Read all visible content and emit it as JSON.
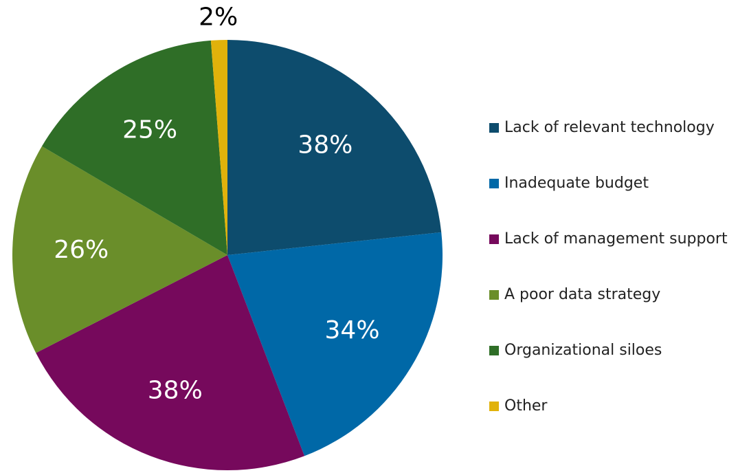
{
  "chart_data": {
    "type": "pie",
    "categories": [
      "Lack of relevant technology",
      "Inadequate budget",
      "Lack of management support",
      "A poor data strategy",
      "Organizational siloes",
      "Other"
    ],
    "values": [
      38,
      34,
      38,
      26,
      25,
      2
    ],
    "value_labels": [
      "38%",
      "34%",
      "38%",
      "26%",
      "25%",
      "2%"
    ],
    "colors": [
      "#0d4c6d",
      "#0068a7",
      "#76095c",
      "#6a8e2a",
      "#2f6e27",
      "#e1b20b"
    ],
    "legend": "right"
  }
}
